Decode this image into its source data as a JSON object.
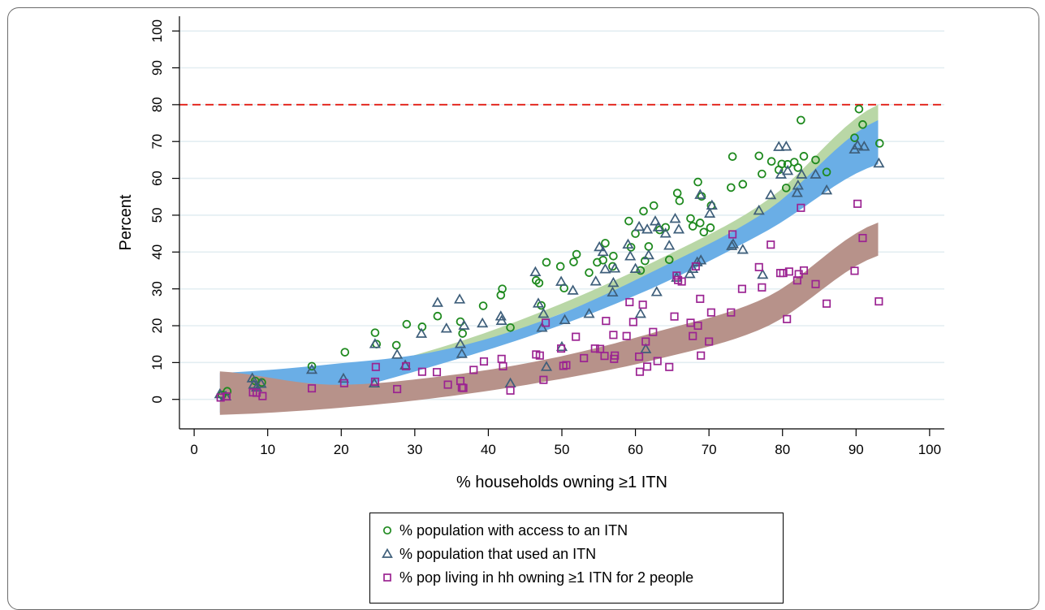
{
  "chart_data": {
    "type": "scatter",
    "xlabel": "% households owning ≥1 ITN",
    "ylabel": "Percent",
    "xlim": [
      -2,
      102
    ],
    "ylim": [
      -8,
      104
    ],
    "xticks": [
      "0",
      "10",
      "20",
      "30",
      "40",
      "50",
      "60",
      "70",
      "80",
      "90",
      "100"
    ],
    "yticks": [
      "0",
      "10",
      "20",
      "30",
      "40",
      "50",
      "60",
      "70",
      "80",
      "90",
      "100"
    ],
    "grid": "horizontal",
    "legend_position": "bottom",
    "reference_line": {
      "y": 80,
      "color": "#e32a22",
      "style": "dashed"
    },
    "bands": [
      {
        "series": "access",
        "color": "#b9d7a6",
        "x_range": [
          3.5,
          93
        ],
        "lower": [
          4.4,
          5.3,
          12.0,
          22.0,
          35.0,
          50.5,
          68.0
        ],
        "upper": [
          5.2,
          6.7,
          14.0,
          24.6,
          38.0,
          54.3,
          80.0
        ]
      },
      {
        "series": "used",
        "color": "#6aaee6",
        "x_range": [
          3.5,
          93
        ],
        "lower": [
          -3.6,
          1.5,
          9.5,
          19.0,
          31.0,
          46.0,
          63.8
        ],
        "upper": [
          7.2,
          9.5,
          13.2,
          22.0,
          35.5,
          51.5,
          75.8
        ]
      },
      {
        "series": "pop2",
        "color": "#b7928a",
        "x_range": [
          3.5,
          93
        ],
        "lower": [
          -4.2,
          -2.5,
          0.5,
          5.0,
          11.0,
          20.0,
          39.0
        ],
        "upper": [
          7.6,
          4.0,
          6.2,
          11.0,
          18.5,
          28.0,
          48.0
        ]
      }
    ],
    "series": [
      {
        "name": "% population with access to an ITN",
        "marker": "circle",
        "color": "#1f8a1f",
        "points": [
          [
            3.8,
            1.2
          ],
          [
            4.5,
            2.2
          ],
          [
            8.3,
            5.0
          ],
          [
            9.2,
            4.6
          ],
          [
            16.0,
            9.0
          ],
          [
            20.5,
            12.8
          ],
          [
            24.6,
            18.1
          ],
          [
            24.8,
            15.0
          ],
          [
            27.5,
            14.7
          ],
          [
            28.9,
            20.4
          ],
          [
            31.0,
            19.7
          ],
          [
            33.1,
            22.6
          ],
          [
            36.2,
            21.1
          ],
          [
            36.5,
            17.9
          ],
          [
            39.3,
            25.4
          ],
          [
            41.7,
            28.3
          ],
          [
            41.9,
            30.0
          ],
          [
            43.0,
            19.5
          ],
          [
            46.5,
            32.3
          ],
          [
            46.9,
            31.6
          ],
          [
            47.2,
            25.5
          ],
          [
            47.9,
            37.2
          ],
          [
            49.8,
            36.1
          ],
          [
            50.3,
            30.2
          ],
          [
            51.6,
            37.3
          ],
          [
            52.0,
            39.4
          ],
          [
            53.7,
            34.4
          ],
          [
            54.8,
            37.2
          ],
          [
            55.6,
            37.8
          ],
          [
            55.9,
            42.4
          ],
          [
            56.9,
            36.1
          ],
          [
            57.0,
            38.9
          ],
          [
            59.1,
            48.4
          ],
          [
            59.4,
            41.3
          ],
          [
            60.0,
            45.0
          ],
          [
            60.7,
            35.0
          ],
          [
            61.1,
            51.1
          ],
          [
            61.3,
            37.6
          ],
          [
            61.8,
            41.5
          ],
          [
            62.5,
            52.6
          ],
          [
            63.3,
            46.0
          ],
          [
            64.1,
            46.7
          ],
          [
            64.6,
            37.9
          ],
          [
            65.7,
            56.0
          ],
          [
            66.0,
            53.9
          ],
          [
            67.5,
            49.1
          ],
          [
            67.8,
            47.0
          ],
          [
            68.5,
            59.0
          ],
          [
            68.8,
            47.9
          ],
          [
            69.0,
            55.1
          ],
          [
            69.3,
            45.4
          ],
          [
            70.2,
            46.6
          ],
          [
            70.3,
            52.6
          ],
          [
            73.0,
            57.5
          ],
          [
            73.2,
            65.9
          ],
          [
            74.6,
            58.4
          ],
          [
            76.8,
            66.1
          ],
          [
            77.2,
            61.2
          ],
          [
            78.5,
            64.6
          ],
          [
            79.5,
            62.3
          ],
          [
            79.9,
            63.9
          ],
          [
            80.5,
            57.4
          ],
          [
            80.7,
            63.8
          ],
          [
            81.6,
            64.4
          ],
          [
            82.1,
            62.9
          ],
          [
            82.5,
            75.8
          ],
          [
            82.9,
            66.0
          ],
          [
            84.5,
            65.0
          ],
          [
            86.0,
            61.7
          ],
          [
            89.8,
            71.0
          ],
          [
            90.4,
            78.8
          ],
          [
            90.9,
            74.6
          ],
          [
            93.2,
            69.5
          ]
        ]
      },
      {
        "name": "% population that used an ITN",
        "marker": "triangle",
        "color": "#3e5e7a",
        "points": [
          [
            3.5,
            1.4
          ],
          [
            4.3,
            0.8
          ],
          [
            7.9,
            5.7
          ],
          [
            8.1,
            4.0
          ],
          [
            8.5,
            3.2
          ],
          [
            9.1,
            4.2
          ],
          [
            16.0,
            8.0
          ],
          [
            20.3,
            5.6
          ],
          [
            24.5,
            4.3
          ],
          [
            24.6,
            15.0
          ],
          [
            27.6,
            12.1
          ],
          [
            28.7,
            9.2
          ],
          [
            30.9,
            17.8
          ],
          [
            33.1,
            26.2
          ],
          [
            34.3,
            19.2
          ],
          [
            36.1,
            27.1
          ],
          [
            36.2,
            15.0
          ],
          [
            36.4,
            12.3
          ],
          [
            36.7,
            20.0
          ],
          [
            39.2,
            20.6
          ],
          [
            41.7,
            22.5
          ],
          [
            41.8,
            21.3
          ],
          [
            43.0,
            4.3
          ],
          [
            46.4,
            34.5
          ],
          [
            46.8,
            26.0
          ],
          [
            47.3,
            19.4
          ],
          [
            47.5,
            23.2
          ],
          [
            47.9,
            8.8
          ],
          [
            49.9,
            31.9
          ],
          [
            50.0,
            14.2
          ],
          [
            50.4,
            21.5
          ],
          [
            51.5,
            29.5
          ],
          [
            53.7,
            23.2
          ],
          [
            54.6,
            32.0
          ],
          [
            55.1,
            41.3
          ],
          [
            55.6,
            40.0
          ],
          [
            55.9,
            35.3
          ],
          [
            56.9,
            29.0
          ],
          [
            57.0,
            31.6
          ],
          [
            57.2,
            35.5
          ],
          [
            59.0,
            42.0
          ],
          [
            59.3,
            38.8
          ],
          [
            60.0,
            35.4
          ],
          [
            60.5,
            46.8
          ],
          [
            60.7,
            23.2
          ],
          [
            61.4,
            13.6
          ],
          [
            61.6,
            46.1
          ],
          [
            61.8,
            39.1
          ],
          [
            62.7,
            48.3
          ],
          [
            62.9,
            29.1
          ],
          [
            63.1,
            46.7
          ],
          [
            64.1,
            45.0
          ],
          [
            64.6,
            41.7
          ],
          [
            65.4,
            49.0
          ],
          [
            65.6,
            33.0
          ],
          [
            65.9,
            46.1
          ],
          [
            67.4,
            34.0
          ],
          [
            67.8,
            35.4
          ],
          [
            68.4,
            37.2
          ],
          [
            68.8,
            55.5
          ],
          [
            68.9,
            37.7
          ],
          [
            70.1,
            50.4
          ],
          [
            70.4,
            52.6
          ],
          [
            73.1,
            41.6
          ],
          [
            73.3,
            42.1
          ],
          [
            74.6,
            40.6
          ],
          [
            76.8,
            51.2
          ],
          [
            77.3,
            33.8
          ],
          [
            78.4,
            55.4
          ],
          [
            79.5,
            68.5
          ],
          [
            79.8,
            61.0
          ],
          [
            80.5,
            68.6
          ],
          [
            80.7,
            62.0
          ],
          [
            82.0,
            56.0
          ],
          [
            82.1,
            58.0
          ],
          [
            82.6,
            61.0
          ],
          [
            84.5,
            61.0
          ],
          [
            86.0,
            56.7
          ],
          [
            89.8,
            67.8
          ],
          [
            90.2,
            68.9
          ],
          [
            91.1,
            68.6
          ],
          [
            93.1,
            64.0
          ]
        ]
      },
      {
        "name": "% pop living in hh owning ≥1 ITN for 2 people",
        "marker": "square",
        "color": "#9b2392",
        "points": [
          [
            3.6,
            0.5
          ],
          [
            4.4,
            0.8
          ],
          [
            8.0,
            1.9
          ],
          [
            8.5,
            1.8
          ],
          [
            9.3,
            0.9
          ],
          [
            16.0,
            3.0
          ],
          [
            20.4,
            4.4
          ],
          [
            24.6,
            4.8
          ],
          [
            24.7,
            8.8
          ],
          [
            27.6,
            2.8
          ],
          [
            28.8,
            9.0
          ],
          [
            31.0,
            7.5
          ],
          [
            33.0,
            7.4
          ],
          [
            34.5,
            4.0
          ],
          [
            36.2,
            5.0
          ],
          [
            36.4,
            3.2
          ],
          [
            36.6,
            3.1
          ],
          [
            38.0,
            8.0
          ],
          [
            39.4,
            10.3
          ],
          [
            41.8,
            11.0
          ],
          [
            42.0,
            9.0
          ],
          [
            43.0,
            2.4
          ],
          [
            46.5,
            12.2
          ],
          [
            47.0,
            11.9
          ],
          [
            47.5,
            5.3
          ],
          [
            47.8,
            20.8
          ],
          [
            49.9,
            13.8
          ],
          [
            50.2,
            9.1
          ],
          [
            50.6,
            9.3
          ],
          [
            51.9,
            17.0
          ],
          [
            53.0,
            11.2
          ],
          [
            54.5,
            13.8
          ],
          [
            55.2,
            13.7
          ],
          [
            55.8,
            11.8
          ],
          [
            56.0,
            21.3
          ],
          [
            57.0,
            17.5
          ],
          [
            57.1,
            11.0
          ],
          [
            57.2,
            11.9
          ],
          [
            58.8,
            17.2
          ],
          [
            59.2,
            26.4
          ],
          [
            59.7,
            21.0
          ],
          [
            60.5,
            11.6
          ],
          [
            60.6,
            7.5
          ],
          [
            61.0,
            25.7
          ],
          [
            61.4,
            15.7
          ],
          [
            61.6,
            8.9
          ],
          [
            62.4,
            18.3
          ],
          [
            63.0,
            10.4
          ],
          [
            64.6,
            8.8
          ],
          [
            65.3,
            22.5
          ],
          [
            65.6,
            33.6
          ],
          [
            65.8,
            32.4
          ],
          [
            66.3,
            32.0
          ],
          [
            67.5,
            20.8
          ],
          [
            67.8,
            17.2
          ],
          [
            68.2,
            36.1
          ],
          [
            68.5,
            20.0
          ],
          [
            68.8,
            27.3
          ],
          [
            68.9,
            11.9
          ],
          [
            70.0,
            15.7
          ],
          [
            70.3,
            23.6
          ],
          [
            73.0,
            23.6
          ],
          [
            73.2,
            44.8
          ],
          [
            74.5,
            30.0
          ],
          [
            76.8,
            35.9
          ],
          [
            77.2,
            30.4
          ],
          [
            78.4,
            42.0
          ],
          [
            79.7,
            34.3
          ],
          [
            80.1,
            34.3
          ],
          [
            80.6,
            21.8
          ],
          [
            80.9,
            34.7
          ],
          [
            82.0,
            32.3
          ],
          [
            82.2,
            34.0
          ],
          [
            82.5,
            52.0
          ],
          [
            82.9,
            35.0
          ],
          [
            84.5,
            31.3
          ],
          [
            86.0,
            26.0
          ],
          [
            89.8,
            34.9
          ],
          [
            90.2,
            53.1
          ],
          [
            90.9,
            43.8
          ],
          [
            93.1,
            26.6
          ]
        ]
      }
    ]
  }
}
